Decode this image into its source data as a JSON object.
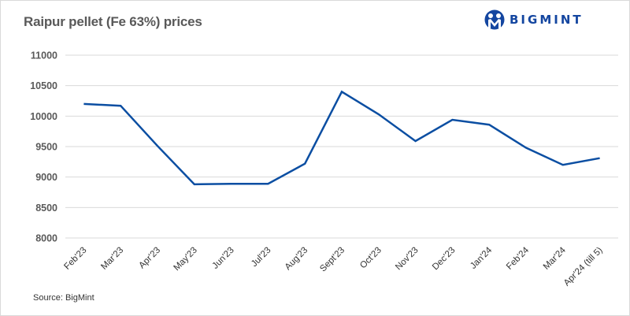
{
  "header": {
    "title": "Raipur pellet (Fe 63%) prices",
    "logo_text": "BIGMINT",
    "logo_icon": "bigmint-people-icon"
  },
  "footer": {
    "source": "Source: BigMint"
  },
  "colors": {
    "line": "#0b4ea2",
    "grid": "#d9d9d9",
    "brand": "#1446a0",
    "title": "#595959"
  },
  "chart_data": {
    "type": "line",
    "title": "Raipur pellet (Fe 63%) prices",
    "xlabel": "",
    "ylabel": "",
    "ylim": [
      8000,
      11000
    ],
    "yticks": [
      8000,
      8500,
      9000,
      9500,
      10000,
      10500,
      11000
    ],
    "grid": true,
    "legend": "none",
    "categories": [
      "Feb'23",
      "Mar'23",
      "Apr'23",
      "May'23",
      "Jun'23",
      "Jul'23",
      "Aug'23",
      "Sept'23",
      "Oct'23",
      "Nov'23",
      "Dec'23",
      "Jan'24",
      "Feb'24",
      "Mar'24",
      "Apr'24 (till 5)"
    ],
    "series": [
      {
        "name": "Raipur pellet (Fe 63%)",
        "values": [
          10200,
          10170,
          9510,
          8880,
          8890,
          8890,
          9220,
          10400,
          10030,
          9590,
          9940,
          9860,
          9480,
          9200,
          9310
        ]
      }
    ],
    "source": "Source: BigMint"
  }
}
